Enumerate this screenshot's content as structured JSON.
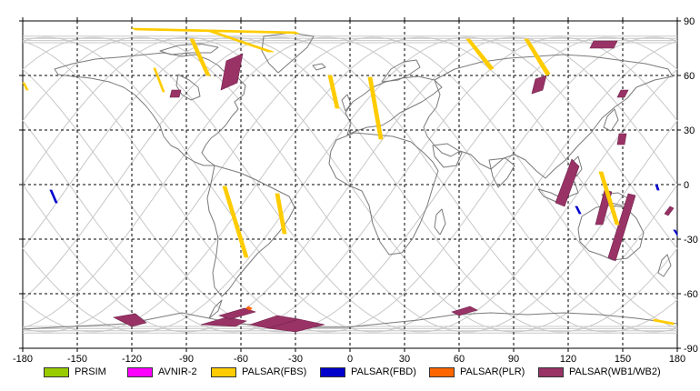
{
  "map": {
    "x_ticks": [
      "-180",
      "-150",
      "-120",
      "-90",
      "-60",
      "-30",
      "0",
      "30",
      "60",
      "90",
      "120",
      "150",
      "180"
    ],
    "y_ticks": [
      "90",
      "60",
      "30",
      "0",
      "-30",
      "-60",
      "-90"
    ],
    "x_range_deg": [
      -180,
      180
    ],
    "y_range_deg": [
      -90,
      90
    ],
    "grid_step_deg": 30,
    "grid": "dashed",
    "colors": {
      "coastline": "#7a7a7a",
      "orbit_track": "#c8c8c8",
      "grid": "#000000"
    }
  },
  "legend": {
    "items": [
      {
        "label": "PRSIM",
        "color": "#99cc00"
      },
      {
        "label": "AVNIR-2",
        "color": "#ff00ff"
      },
      {
        "label": "PALSAR(FBS)",
        "color": "#ffcc00"
      },
      {
        "label": "PALSAR(FBD)",
        "color": "#0000cc"
      },
      {
        "label": "PALSAR(PLR)",
        "color": "#ff6600"
      },
      {
        "label": "PALSAR(WB1/WB2)",
        "color": "#993366"
      }
    ]
  },
  "observation_swaths": [
    {
      "sensor": "PALSAR(WB1/WB2)",
      "corners": [
        [
          -130,
          -73
        ],
        [
          -120,
          -78
        ],
        [
          -112,
          -76
        ],
        [
          -118,
          -71
        ]
      ]
    },
    {
      "sensor": "PALSAR(WB1/WB2)",
      "corners": [
        [
          -82,
          -77
        ],
        [
          -68,
          -73
        ],
        [
          -57,
          -75
        ],
        [
          -63,
          -78
        ]
      ]
    },
    {
      "sensor": "PALSAR(WB1/WB2)",
      "corners": [
        [
          -55,
          -77
        ],
        [
          -40,
          -72
        ],
        [
          -28,
          -74
        ],
        [
          -45,
          -79
        ]
      ]
    },
    {
      "sensor": "PALSAR(WB1/WB2)",
      "corners": [
        [
          -45,
          -79
        ],
        [
          -28,
          -74
        ],
        [
          -14,
          -77
        ],
        [
          -30,
          -81
        ]
      ]
    },
    {
      "sensor": "PALSAR(WB1/WB2)",
      "corners": [
        [
          -72,
          -72
        ],
        [
          -58,
          -68
        ],
        [
          -52,
          -70
        ],
        [
          -66,
          -74
        ]
      ]
    },
    {
      "sensor": "PALSAR(WB1/WB2)",
      "corners": [
        [
          56,
          -70
        ],
        [
          66,
          -67
        ],
        [
          70,
          -69
        ],
        [
          60,
          -72
        ]
      ]
    },
    {
      "sensor": "PALSAR(WB1/WB2)",
      "corners": [
        [
          -71,
          52
        ],
        [
          -68,
          68
        ],
        [
          -59,
          72
        ],
        [
          -62,
          56
        ]
      ]
    },
    {
      "sensor": "PALSAR(WB1/WB2)",
      "corners": [
        [
          -99,
          48
        ],
        [
          -98,
          52
        ],
        [
          -93,
          52
        ],
        [
          -94,
          48
        ]
      ]
    },
    {
      "sensor": "PALSAR(WB1/WB2)",
      "corners": [
        [
          100,
          50
        ],
        [
          102,
          58
        ],
        [
          108,
          60
        ],
        [
          106,
          52
        ]
      ]
    },
    {
      "sensor": "PALSAR(WB1/WB2)",
      "corners": [
        [
          132,
          75
        ],
        [
          134,
          79
        ],
        [
          147,
          79
        ],
        [
          145,
          75
        ]
      ]
    },
    {
      "sensor": "PALSAR(WB1/WB2)",
      "corners": [
        [
          147,
          48
        ],
        [
          149,
          52
        ],
        [
          153,
          52
        ],
        [
          151,
          48
        ]
      ]
    },
    {
      "sensor": "PALSAR(WB1/WB2)",
      "corners": [
        [
          113,
          -10
        ],
        [
          122,
          14
        ],
        [
          126,
          10
        ],
        [
          118,
          -12
        ]
      ]
    },
    {
      "sensor": "PALSAR(WB1/WB2)",
      "corners": [
        [
          135,
          -22
        ],
        [
          140,
          -3
        ],
        [
          144,
          -4
        ],
        [
          139,
          -22
        ]
      ]
    },
    {
      "sensor": "PALSAR(WB1/WB2)",
      "corners": [
        [
          142,
          -40
        ],
        [
          153,
          -5
        ],
        [
          157,
          -6
        ],
        [
          146,
          -42
        ]
      ]
    },
    {
      "sensor": "PALSAR(WB1/WB2)",
      "corners": [
        [
          147,
          22
        ],
        [
          148,
          28
        ],
        [
          152,
          28
        ],
        [
          151,
          22
        ]
      ]
    },
    {
      "sensor": "PALSAR(WB1/WB2)",
      "corners": [
        [
          173,
          -16
        ],
        [
          176,
          -12
        ],
        [
          178,
          -13
        ],
        [
          175,
          -17
        ]
      ]
    },
    {
      "sensor": "PALSAR(FBS)",
      "corners": [
        [
          -120,
          86
        ],
        [
          -30,
          84
        ],
        [
          -28,
          83
        ],
        [
          -118,
          85
        ]
      ]
    },
    {
      "sensor": "PALSAR(FBS)",
      "corners": [
        [
          -80,
          85
        ],
        [
          -45,
          73
        ],
        [
          -42,
          73
        ],
        [
          -77,
          85
        ]
      ]
    },
    {
      "sensor": "PALSAR(FBS)",
      "corners": [
        [
          -70,
          -1
        ],
        [
          -58,
          -40
        ],
        [
          -56,
          -40
        ],
        [
          -68,
          -1
        ]
      ]
    },
    {
      "sensor": "PALSAR(FBS)",
      "corners": [
        [
          -108,
          64
        ],
        [
          -103,
          51
        ],
        [
          -102,
          51
        ],
        [
          -107,
          64
        ]
      ]
    },
    {
      "sensor": "PALSAR(FBS)",
      "corners": [
        [
          -88,
          80
        ],
        [
          -79,
          60
        ],
        [
          -77,
          60
        ],
        [
          -86,
          80
        ]
      ]
    },
    {
      "sensor": "PALSAR(FBS)",
      "corners": [
        [
          -12,
          60
        ],
        [
          -8,
          42
        ],
        [
          -6,
          42
        ],
        [
          -10,
          60
        ]
      ]
    },
    {
      "sensor": "PALSAR(FBS)",
      "corners": [
        [
          10,
          59
        ],
        [
          16,
          25
        ],
        [
          18,
          25
        ],
        [
          12,
          59
        ]
      ]
    },
    {
      "sensor": "PALSAR(FBS)",
      "corners": [
        [
          64,
          80
        ],
        [
          77,
          63
        ],
        [
          79,
          64
        ],
        [
          66,
          80
        ]
      ]
    },
    {
      "sensor": "PALSAR(FBS)",
      "corners": [
        [
          96,
          80
        ],
        [
          108,
          60
        ],
        [
          110,
          61
        ],
        [
          98,
          80
        ]
      ]
    },
    {
      "sensor": "PALSAR(FBS)",
      "corners": [
        [
          -41,
          -5
        ],
        [
          -37,
          -27
        ],
        [
          -35,
          -27
        ],
        [
          -39,
          -5
        ]
      ]
    },
    {
      "sensor": "PALSAR(FBS)",
      "corners": [
        [
          137,
          7
        ],
        [
          146,
          -22
        ],
        [
          148,
          -22
        ],
        [
          139,
          7
        ]
      ]
    },
    {
      "sensor": "PALSAR(FBS)",
      "corners": [
        [
          167,
          -75
        ],
        [
          178,
          -77
        ],
        [
          178,
          -76
        ],
        [
          167,
          -74
        ]
      ]
    },
    {
      "sensor": "PALSAR(FBS)",
      "corners": [
        [
          -180,
          56
        ],
        [
          -178,
          52
        ],
        [
          -177,
          52
        ],
        [
          -179,
          56
        ]
      ]
    },
    {
      "sensor": "PALSAR(FBD)",
      "corners": [
        [
          -165,
          -3
        ],
        [
          -162,
          -10
        ],
        [
          -161,
          -10
        ],
        [
          -164,
          -3
        ]
      ]
    },
    {
      "sensor": "PALSAR(FBD)",
      "corners": [
        [
          124,
          -12
        ],
        [
          126,
          -16
        ],
        [
          127,
          -16
        ],
        [
          125,
          -12
        ]
      ]
    },
    {
      "sensor": "PALSAR(FBD)",
      "corners": [
        [
          178,
          -25
        ],
        [
          180,
          -28
        ],
        [
          180,
          -27
        ],
        [
          179,
          -25
        ]
      ]
    },
    {
      "sensor": "PALSAR(FBD)",
      "corners": [
        [
          168,
          0
        ],
        [
          169,
          -3
        ],
        [
          170,
          -3
        ],
        [
          169,
          0
        ]
      ]
    },
    {
      "sensor": "PALSAR(PLR)",
      "corners": [
        [
          -57,
          -68
        ],
        [
          -55,
          -69
        ],
        [
          -54,
          -68
        ],
        [
          -56,
          -67
        ]
      ]
    }
  ]
}
